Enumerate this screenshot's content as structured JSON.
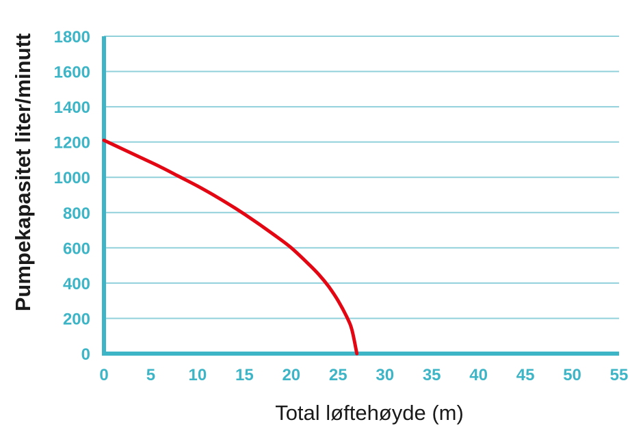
{
  "chart_data": {
    "type": "line",
    "title": "",
    "xlabel": "Total løftehøyde (m)",
    "ylabel": "Pumpekapasitet liter/minutt",
    "xlim": [
      0,
      55
    ],
    "ylim": [
      0,
      1800
    ],
    "x_ticks": [
      "0",
      "5",
      "10",
      "15",
      "20",
      "25",
      "30",
      "35",
      "40",
      "45",
      "50",
      "55"
    ],
    "y_ticks": [
      "0",
      "200",
      "400",
      "600",
      "800",
      "1000",
      "1200",
      "1400",
      "1600",
      "1800"
    ],
    "grid": "horizontal",
    "colors": {
      "axis": "#3eb5c6",
      "grid": "#8fd0db",
      "tick_label": "#3eb5c6",
      "curve": "#e30613"
    },
    "series": [
      {
        "x": [
          0,
          2,
          4,
          6,
          8,
          10,
          12,
          14,
          16,
          18,
          20,
          22,
          23,
          24,
          25,
          26,
          26.5,
          27
        ],
        "y": [
          1210,
          1160,
          1110,
          1060,
          1005,
          950,
          890,
          825,
          755,
          680,
          600,
          500,
          445,
          380,
          300,
          200,
          130,
          0
        ]
      }
    ]
  }
}
